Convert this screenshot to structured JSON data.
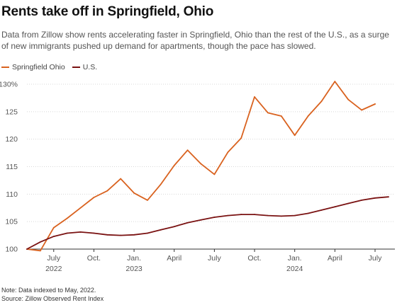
{
  "header": {
    "title": "Rents take off in Springfield, Ohio",
    "subtitle": "Data from Zillow show rents accelerating faster in Springfield, Ohio than the rest of the U.S., as a surge of new immigrants pushed up demand for apartments, though the pace has slowed."
  },
  "legend": {
    "springfield_label": "Springfield Ohio",
    "us_label": "U.S."
  },
  "colors": {
    "springfield": "#d9621f",
    "us": "#7a1212",
    "grid": "#d8d8d8",
    "axis_text": "#555555"
  },
  "footnote": {
    "note": "Note: Data indexed to May, 2022.",
    "source": "Source: Zillow Observed Rent Index"
  },
  "chart_data": {
    "type": "line",
    "x": [
      "2022-05",
      "2022-06",
      "2022-07",
      "2022-08",
      "2022-09",
      "2022-10",
      "2022-11",
      "2022-12",
      "2023-01",
      "2023-02",
      "2023-03",
      "2023-04",
      "2023-05",
      "2023-06",
      "2023-07",
      "2023-08",
      "2023-09",
      "2023-10",
      "2023-11",
      "2023-12",
      "2024-01",
      "2024-02",
      "2024-03",
      "2024-04",
      "2024-05",
      "2024-06",
      "2024-07",
      "2024-08"
    ],
    "series": [
      {
        "name": "Springfield Ohio",
        "values": [
          100,
          99.7,
          103.9,
          105.6,
          107.5,
          109.4,
          110.6,
          112.8,
          110.2,
          108.9,
          111.8,
          115.2,
          118.0,
          115.5,
          113.6,
          117.6,
          120.2,
          127.7,
          124.8,
          124.2,
          120.7,
          124.2,
          126.9,
          130.5,
          127.2,
          125.3,
          126.4,
          null
        ],
        "color": "#d9621f"
      },
      {
        "name": "U.S.",
        "values": [
          100,
          101.3,
          102.3,
          102.9,
          103.1,
          102.9,
          102.6,
          102.5,
          102.6,
          102.9,
          103.5,
          104.1,
          104.8,
          105.3,
          105.8,
          106.1,
          106.3,
          106.3,
          106.1,
          106.0,
          106.1,
          106.5,
          107.1,
          107.7,
          108.3,
          108.9,
          109.3,
          109.5
        ],
        "color": "#7a1212"
      }
    ],
    "ylim": [
      100,
      130
    ],
    "y_ticks": [
      100,
      105,
      110,
      115,
      120,
      125,
      130
    ],
    "y_tick_labels": [
      "100",
      "105",
      "110",
      "115",
      "120",
      "125",
      "130%"
    ],
    "x_ticks": [
      {
        "label": "July",
        "sub": "2022",
        "index": 2
      },
      {
        "label": "Oct.",
        "sub": "",
        "index": 5
      },
      {
        "label": "Jan.",
        "sub": "2023",
        "index": 8
      },
      {
        "label": "April",
        "sub": "",
        "index": 11
      },
      {
        "label": "July",
        "sub": "",
        "index": 14
      },
      {
        "label": "Oct.",
        "sub": "",
        "index": 17
      },
      {
        "label": "Jan.",
        "sub": "2024",
        "index": 20
      },
      {
        "label": "April",
        "sub": "",
        "index": 23
      },
      {
        "label": "July",
        "sub": "",
        "index": 26
      }
    ],
    "grid": true,
    "legend_position": "top-left"
  }
}
